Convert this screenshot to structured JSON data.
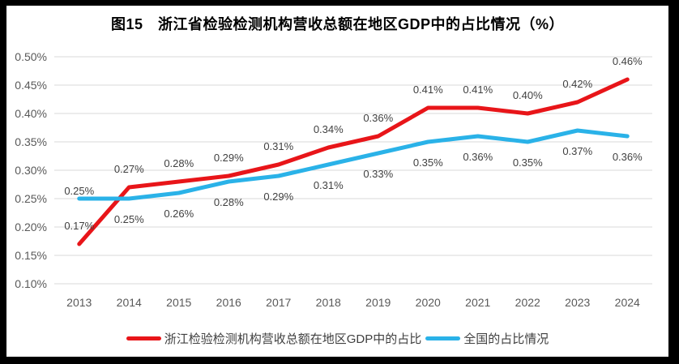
{
  "chart_data": {
    "type": "line",
    "title": "图15　浙江省检验检测机构营收总额在地区GDP中的占比情况（%）",
    "categories": [
      "2013",
      "2014",
      "2015",
      "2016",
      "2017",
      "2018",
      "2019",
      "2020",
      "2021",
      "2022",
      "2023",
      "2024"
    ],
    "series": [
      {
        "name": "浙江检验检测机构营收总额在地区GDP中的占比",
        "color": "#e81519",
        "values": [
          0.17,
          0.27,
          0.28,
          0.29,
          0.31,
          0.34,
          0.36,
          0.41,
          0.41,
          0.4,
          0.42,
          0.46
        ],
        "labels": [
          "0.17%",
          "0.27%",
          "0.28%",
          "0.29%",
          "0.31%",
          "0.34%",
          "0.36%",
          "0.41%",
          "0.41%",
          "0.40%",
          "0.42%",
          "0.46%"
        ],
        "label_side": "above"
      },
      {
        "name": "全国的占比情况",
        "color": "#2ab2e8",
        "values": [
          0.25,
          0.25,
          0.26,
          0.28,
          0.29,
          0.31,
          0.33,
          0.35,
          0.36,
          0.35,
          0.37,
          0.36
        ],
        "labels": [
          "0.25%",
          "0.25%",
          "0.26%",
          "0.28%",
          "0.29%",
          "0.31%",
          "0.33%",
          "0.35%",
          "0.36%",
          "0.35%",
          "0.37%",
          "0.36%"
        ],
        "label_side": "below",
        "label_side_overrides": {
          "0": "above-tight"
        }
      }
    ],
    "y_axis": {
      "min": 0.1,
      "max": 0.5,
      "step": 0.05,
      "tick_labels": [
        "0.10%",
        "0.15%",
        "0.20%",
        "0.25%",
        "0.30%",
        "0.35%",
        "0.40%",
        "0.45%",
        "0.50%"
      ]
    },
    "grid": true,
    "legend_position": "bottom",
    "colors": {
      "grid": "#d9d9d9",
      "tick_text": "#595959",
      "data_label_text": "#404040",
      "title_text": "#000000",
      "plot_background": "#ffffff",
      "frame_border": "#000000"
    }
  }
}
